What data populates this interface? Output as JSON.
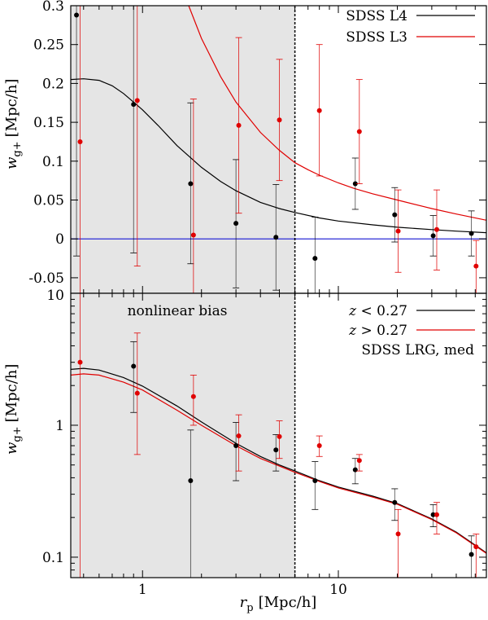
{
  "chart_data": [
    {
      "type": "scatter",
      "panel": "top",
      "xscale": "log",
      "yscale": "linear",
      "xlim": [
        0.43,
        57
      ],
      "ylim": [
        -0.07,
        0.3
      ],
      "ylabel_main": "w",
      "ylabel_sub": "g+",
      "ylabel_unit": "[Mpc/h]",
      "yticks": [
        -0.05,
        0,
        0.05,
        0.1,
        0.15,
        0.2,
        0.25,
        0.3
      ],
      "ytick_labels": [
        "-0.05",
        "0",
        "0.05",
        "0.1",
        "0.15",
        "0.2",
        "0.25",
        "0.3"
      ],
      "xticks_minor": [
        0.5,
        0.6,
        0.7,
        0.8,
        0.9,
        1,
        2,
        3,
        4,
        5,
        6,
        7,
        8,
        9,
        10,
        20,
        30,
        40,
        50
      ],
      "bottom_tick_label": "10",
      "zero_line_color": "#2b2bd6",
      "shaded_region": {
        "x": [
          0.43,
          6.0
        ],
        "color": "#e5e5e5"
      },
      "vline_x": 6.0,
      "legend": [
        {
          "label": "SDSS L4",
          "color": "#000000"
        },
        {
          "label": "SDSS L3",
          "color": "#e00000"
        }
      ],
      "series": [
        {
          "name": "SDSS L4",
          "color": "#000000",
          "points": [
            {
              "x": 0.46,
              "y": 0.288,
              "lo": -0.022,
              "hi": 0.3
            },
            {
              "x": 0.9,
              "y": 0.173,
              "lo": -0.018,
              "hi": 0.3
            },
            {
              "x": 1.76,
              "y": 0.071,
              "lo": -0.032,
              "hi": 0.175
            },
            {
              "x": 3.0,
              "y": 0.02,
              "lo": -0.063,
              "hi": 0.102
            },
            {
              "x": 4.8,
              "y": 0.002,
              "lo": -0.066,
              "hi": 0.07
            },
            {
              "x": 7.6,
              "y": -0.025,
              "lo": -0.08,
              "hi": 0.028
            },
            {
              "x": 12.2,
              "y": 0.071,
              "lo": 0.038,
              "hi": 0.104
            },
            {
              "x": 19.4,
              "y": 0.031,
              "lo": -0.004,
              "hi": 0.066
            },
            {
              "x": 30.5,
              "y": 0.004,
              "lo": -0.022,
              "hi": 0.03
            },
            {
              "x": 47.8,
              "y": 0.007,
              "lo": -0.022,
              "hi": 0.036
            }
          ],
          "model": {
            "x": [
              0.43,
              0.5,
              0.6,
              0.7,
              0.8,
              0.9,
              1.0,
              1.2,
              1.5,
              2.0,
              2.5,
              3.0,
              4.0,
              5.0,
              6.0,
              8.0,
              10.0,
              15.0,
              20.0,
              30.0,
              40.0,
              57.0
            ],
            "y": [
              0.205,
              0.206,
              0.204,
              0.197,
              0.187,
              0.176,
              0.166,
              0.146,
              0.12,
              0.092,
              0.074,
              0.062,
              0.047,
              0.039,
              0.034,
              0.027,
              0.023,
              0.018,
              0.015,
              0.012,
              0.01,
              0.008
            ]
          }
        },
        {
          "name": "SDSS L3",
          "color": "#e00000",
          "points": [
            {
              "x": 0.48,
              "y": 0.125,
              "lo": -0.07,
              "hi": 0.3
            },
            {
              "x": 0.94,
              "y": 0.178,
              "lo": -0.035,
              "hi": 0.3
            },
            {
              "x": 1.82,
              "y": 0.005,
              "lo": -0.07,
              "hi": 0.18
            },
            {
              "x": 3.1,
              "y": 0.146,
              "lo": 0.033,
              "hi": 0.259
            },
            {
              "x": 5.0,
              "y": 0.153,
              "lo": 0.075,
              "hi": 0.231
            },
            {
              "x": 8.0,
              "y": 0.165,
              "lo": 0.081,
              "hi": 0.25
            },
            {
              "x": 12.8,
              "y": 0.138,
              "lo": 0.071,
              "hi": 0.205
            },
            {
              "x": 20.2,
              "y": 0.01,
              "lo": -0.043,
              "hi": 0.063
            },
            {
              "x": 31.8,
              "y": 0.012,
              "lo": -0.04,
              "hi": 0.063
            },
            {
              "x": 50.5,
              "y": -0.035,
              "lo": -0.07,
              "hi": -0.002
            }
          ],
          "model": {
            "x": [
              1.72,
              2.0,
              2.5,
              3.0,
              4.0,
              5.0,
              6.0,
              7.0,
              8.0,
              10.0,
              12.0,
              15.0,
              20.0,
              30.0,
              40.0,
              57.0
            ],
            "y": [
              0.3,
              0.258,
              0.209,
              0.176,
              0.137,
              0.114,
              0.098,
              0.089,
              0.082,
              0.072,
              0.065,
              0.058,
              0.05,
              0.039,
              0.032,
              0.024
            ]
          }
        }
      ]
    },
    {
      "type": "scatter",
      "panel": "bottom",
      "xscale": "log",
      "yscale": "log",
      "xlim": [
        0.43,
        57
      ],
      "ylim": [
        0.07,
        10
      ],
      "xlabel_main": "r",
      "xlabel_sub": "p",
      "xlabel_unit": "[Mpc/h]",
      "ylabel_main": "w",
      "ylabel_sub": "g+",
      "ylabel_unit": "[Mpc/h]",
      "yticks_major": [
        0.1,
        1
      ],
      "ytick_labels": [
        "0.1",
        "1"
      ],
      "xticks_major": [
        1,
        10
      ],
      "xtick_labels": [
        "1",
        "10"
      ],
      "shaded_region": {
        "x": [
          0.43,
          6.0
        ],
        "color": "#e5e5e5"
      },
      "vline_x": 6.0,
      "annotation": "nonlinear bias",
      "legend": [
        {
          "z": "z",
          "op": " < 0.27",
          "color": "#000000"
        },
        {
          "z": "z",
          "op": " > 0.27",
          "color": "#e00000"
        }
      ],
      "legend_extra": "SDSS LRG, med",
      "series": [
        {
          "name": "z < 0.27",
          "color": "#000000",
          "points": [
            {
              "x": 0.9,
              "y": 2.8,
              "lo": 1.25,
              "hi": 4.3
            },
            {
              "x": 1.76,
              "y": 0.38,
              "lo": 0.07,
              "hi": 0.92
            },
            {
              "x": 3.0,
              "y": 0.7,
              "lo": 0.38,
              "hi": 1.05
            },
            {
              "x": 4.8,
              "y": 0.65,
              "lo": 0.45,
              "hi": 0.85
            },
            {
              "x": 7.6,
              "y": 0.38,
              "lo": 0.23,
              "hi": 0.53
            },
            {
              "x": 12.2,
              "y": 0.46,
              "lo": 0.36,
              "hi": 0.56
            },
            {
              "x": 19.4,
              "y": 0.26,
              "lo": 0.19,
              "hi": 0.33
            },
            {
              "x": 30.5,
              "y": 0.21,
              "lo": 0.17,
              "hi": 0.25
            },
            {
              "x": 47.8,
              "y": 0.105,
              "lo": 0.07,
              "hi": 0.145
            }
          ],
          "model": {
            "x": [
              0.43,
              0.5,
              0.6,
              0.8,
              1.0,
              1.5,
              2.0,
              3.0,
              4.0,
              5.0,
              6.0,
              8.0,
              10.0,
              15.0,
              20.0,
              30.0,
              40.0,
              57.0
            ],
            "y": [
              2.65,
              2.7,
              2.62,
              2.3,
              1.98,
              1.4,
              1.06,
              0.73,
              0.58,
              0.5,
              0.45,
              0.38,
              0.34,
              0.29,
              0.255,
              0.195,
              0.155,
              0.108
            ]
          }
        },
        {
          "name": "z > 0.27",
          "color": "#e00000",
          "points": [
            {
              "x": 0.48,
              "y": 3.0,
              "lo": 0.07,
              "hi": 10
            },
            {
              "x": 0.94,
              "y": 1.75,
              "lo": 0.6,
              "hi": 5.0
            },
            {
              "x": 1.82,
              "y": 1.65,
              "lo": 1.0,
              "hi": 2.4
            },
            {
              "x": 3.1,
              "y": 0.83,
              "lo": 0.45,
              "hi": 1.2
            },
            {
              "x": 5.0,
              "y": 0.82,
              "lo": 0.56,
              "hi": 1.08
            },
            {
              "x": 8.0,
              "y": 0.7,
              "lo": 0.58,
              "hi": 0.83
            },
            {
              "x": 12.8,
              "y": 0.54,
              "lo": 0.45,
              "hi": 0.6
            },
            {
              "x": 20.2,
              "y": 0.15,
              "lo": 0.07,
              "hi": 0.23
            },
            {
              "x": 31.8,
              "y": 0.21,
              "lo": 0.15,
              "hi": 0.26
            },
            {
              "x": 50.5,
              "y": 0.12,
              "lo": 0.07,
              "hi": 0.15
            }
          ],
          "model": {
            "x": [
              0.43,
              0.5,
              0.6,
              0.8,
              1.0,
              1.5,
              2.0,
              3.0,
              4.0,
              5.0,
              6.0,
              8.0,
              10.0,
              15.0,
              20.0,
              30.0,
              40.0,
              57.0
            ],
            "y": [
              2.4,
              2.45,
              2.4,
              2.12,
              1.85,
              1.3,
              1.0,
              0.7,
              0.56,
              0.49,
              0.44,
              0.375,
              0.335,
              0.285,
              0.252,
              0.193,
              0.153,
              0.107
            ]
          }
        }
      ]
    }
  ]
}
